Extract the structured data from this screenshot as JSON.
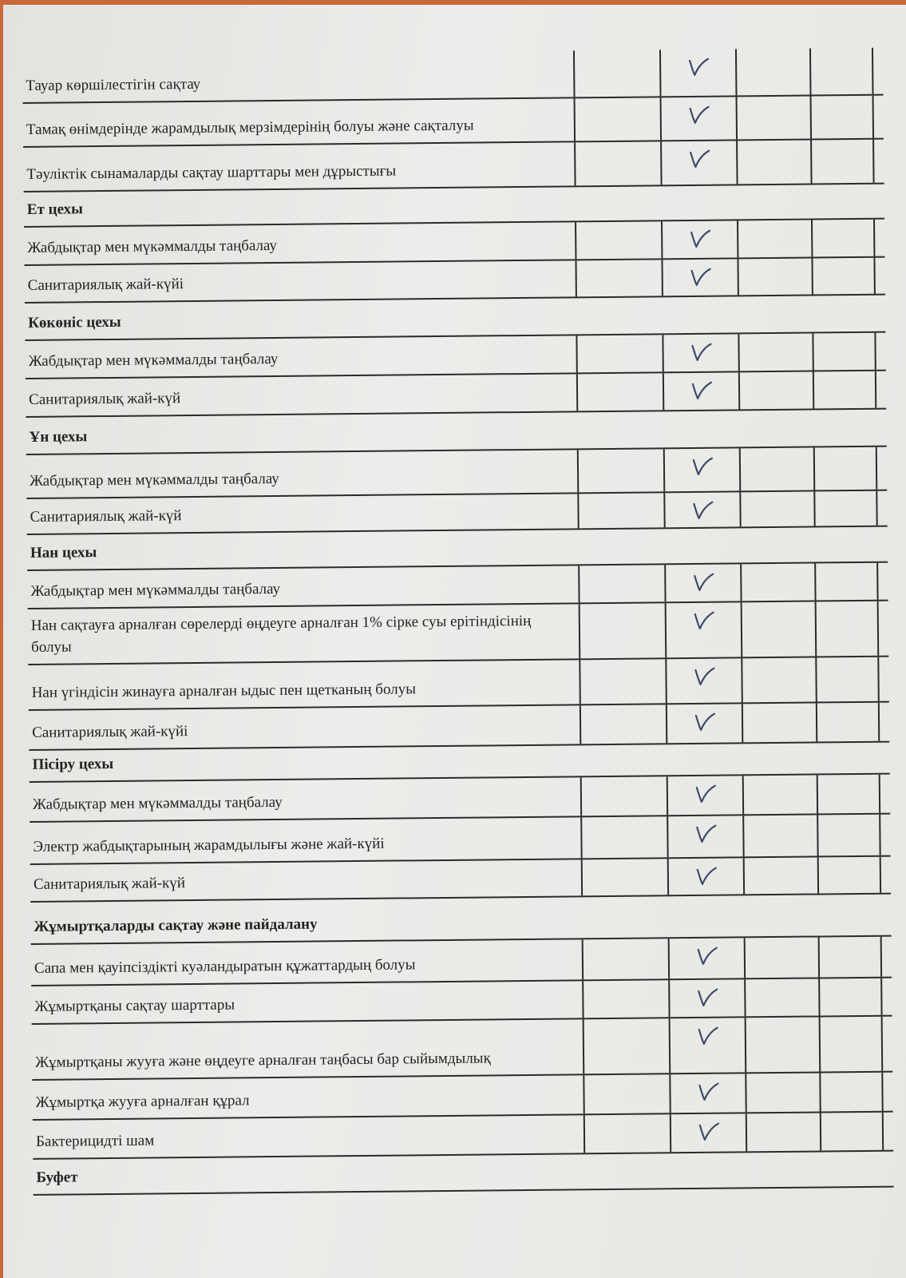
{
  "document": {
    "rows": [
      {
        "type": "item",
        "label": "Тауар көршілестігін сақтау",
        "checked": true
      },
      {
        "type": "item",
        "label": "Тамақ өнімдерінде жарамдылық мерзімдерінің болуы және сақталуы",
        "checked": true
      },
      {
        "type": "item",
        "label": "Тәуліктік сынамаларды сақтау шарттары мен дұрыстығы",
        "checked": true
      },
      {
        "type": "section",
        "label": "Ет цехы"
      },
      {
        "type": "item",
        "label": "Жабдықтар мен мүкәммалды таңбалау",
        "checked": true
      },
      {
        "type": "item",
        "label": "Санитариялық жай-күйі",
        "checked": true
      },
      {
        "type": "section",
        "label": "Көкөніс цехы"
      },
      {
        "type": "item",
        "label": "Жабдықтар мен мүкәммалды таңбалау",
        "checked": true
      },
      {
        "type": "item",
        "label": "Санитариялық жай-күй",
        "checked": true
      },
      {
        "type": "section",
        "label": "Ұн цехы"
      },
      {
        "type": "item",
        "label": "Жабдықтар мен мүкәммалды таңбалау",
        "checked": true
      },
      {
        "type": "item",
        "label": "Санитариялық жай-күй",
        "checked": true
      },
      {
        "type": "section",
        "label": "Нан цехы"
      },
      {
        "type": "item",
        "label": "Жабдықтар мен мүкәммалды таңбалау",
        "checked": true
      },
      {
        "type": "item",
        "label": "Нан сақтауға арналған сөрелерді өңдеуге арналған 1% сірке суы ерітіндісінің болуы",
        "checked": true
      },
      {
        "type": "item",
        "label": "Нан үгіндісін жинауға арналған ыдыс пен щетканың болуы",
        "checked": true
      },
      {
        "type": "item",
        "label": "Санитариялық жай-күйі",
        "checked": true
      },
      {
        "type": "section",
        "label": "Пісіру цехы"
      },
      {
        "type": "item",
        "label": "Жабдықтар мен мүкәммалды таңбалау",
        "checked": true
      },
      {
        "type": "item",
        "label": "Электр жабдықтарының жарамдылығы және жай-күйі",
        "checked": true
      },
      {
        "type": "item",
        "label": "Санитариялық жай-күй",
        "checked": true
      },
      {
        "type": "section",
        "label": "Жұмыртқаларды сақтау және пайдалану"
      },
      {
        "type": "item",
        "label": "Сапа мен қауіпсіздікті куәландыратын құжаттардың болуы",
        "checked": true
      },
      {
        "type": "item",
        "label": "Жұмыртқаны сақтау шарттары",
        "checked": true
      },
      {
        "type": "item",
        "label": "Жұмыртқаны жууға және өңдеуге арналған таңбасы бар сыйымдылық",
        "checked": true
      },
      {
        "type": "item",
        "label": "Жұмыртқа жууға арналған құрал",
        "checked": true
      },
      {
        "type": "item",
        "label": "Бактерицидті шам",
        "checked": true
      },
      {
        "type": "section",
        "label": "Буфет"
      }
    ],
    "check_color": "#3e4a6a",
    "check_icon": "checkmark-icon"
  }
}
